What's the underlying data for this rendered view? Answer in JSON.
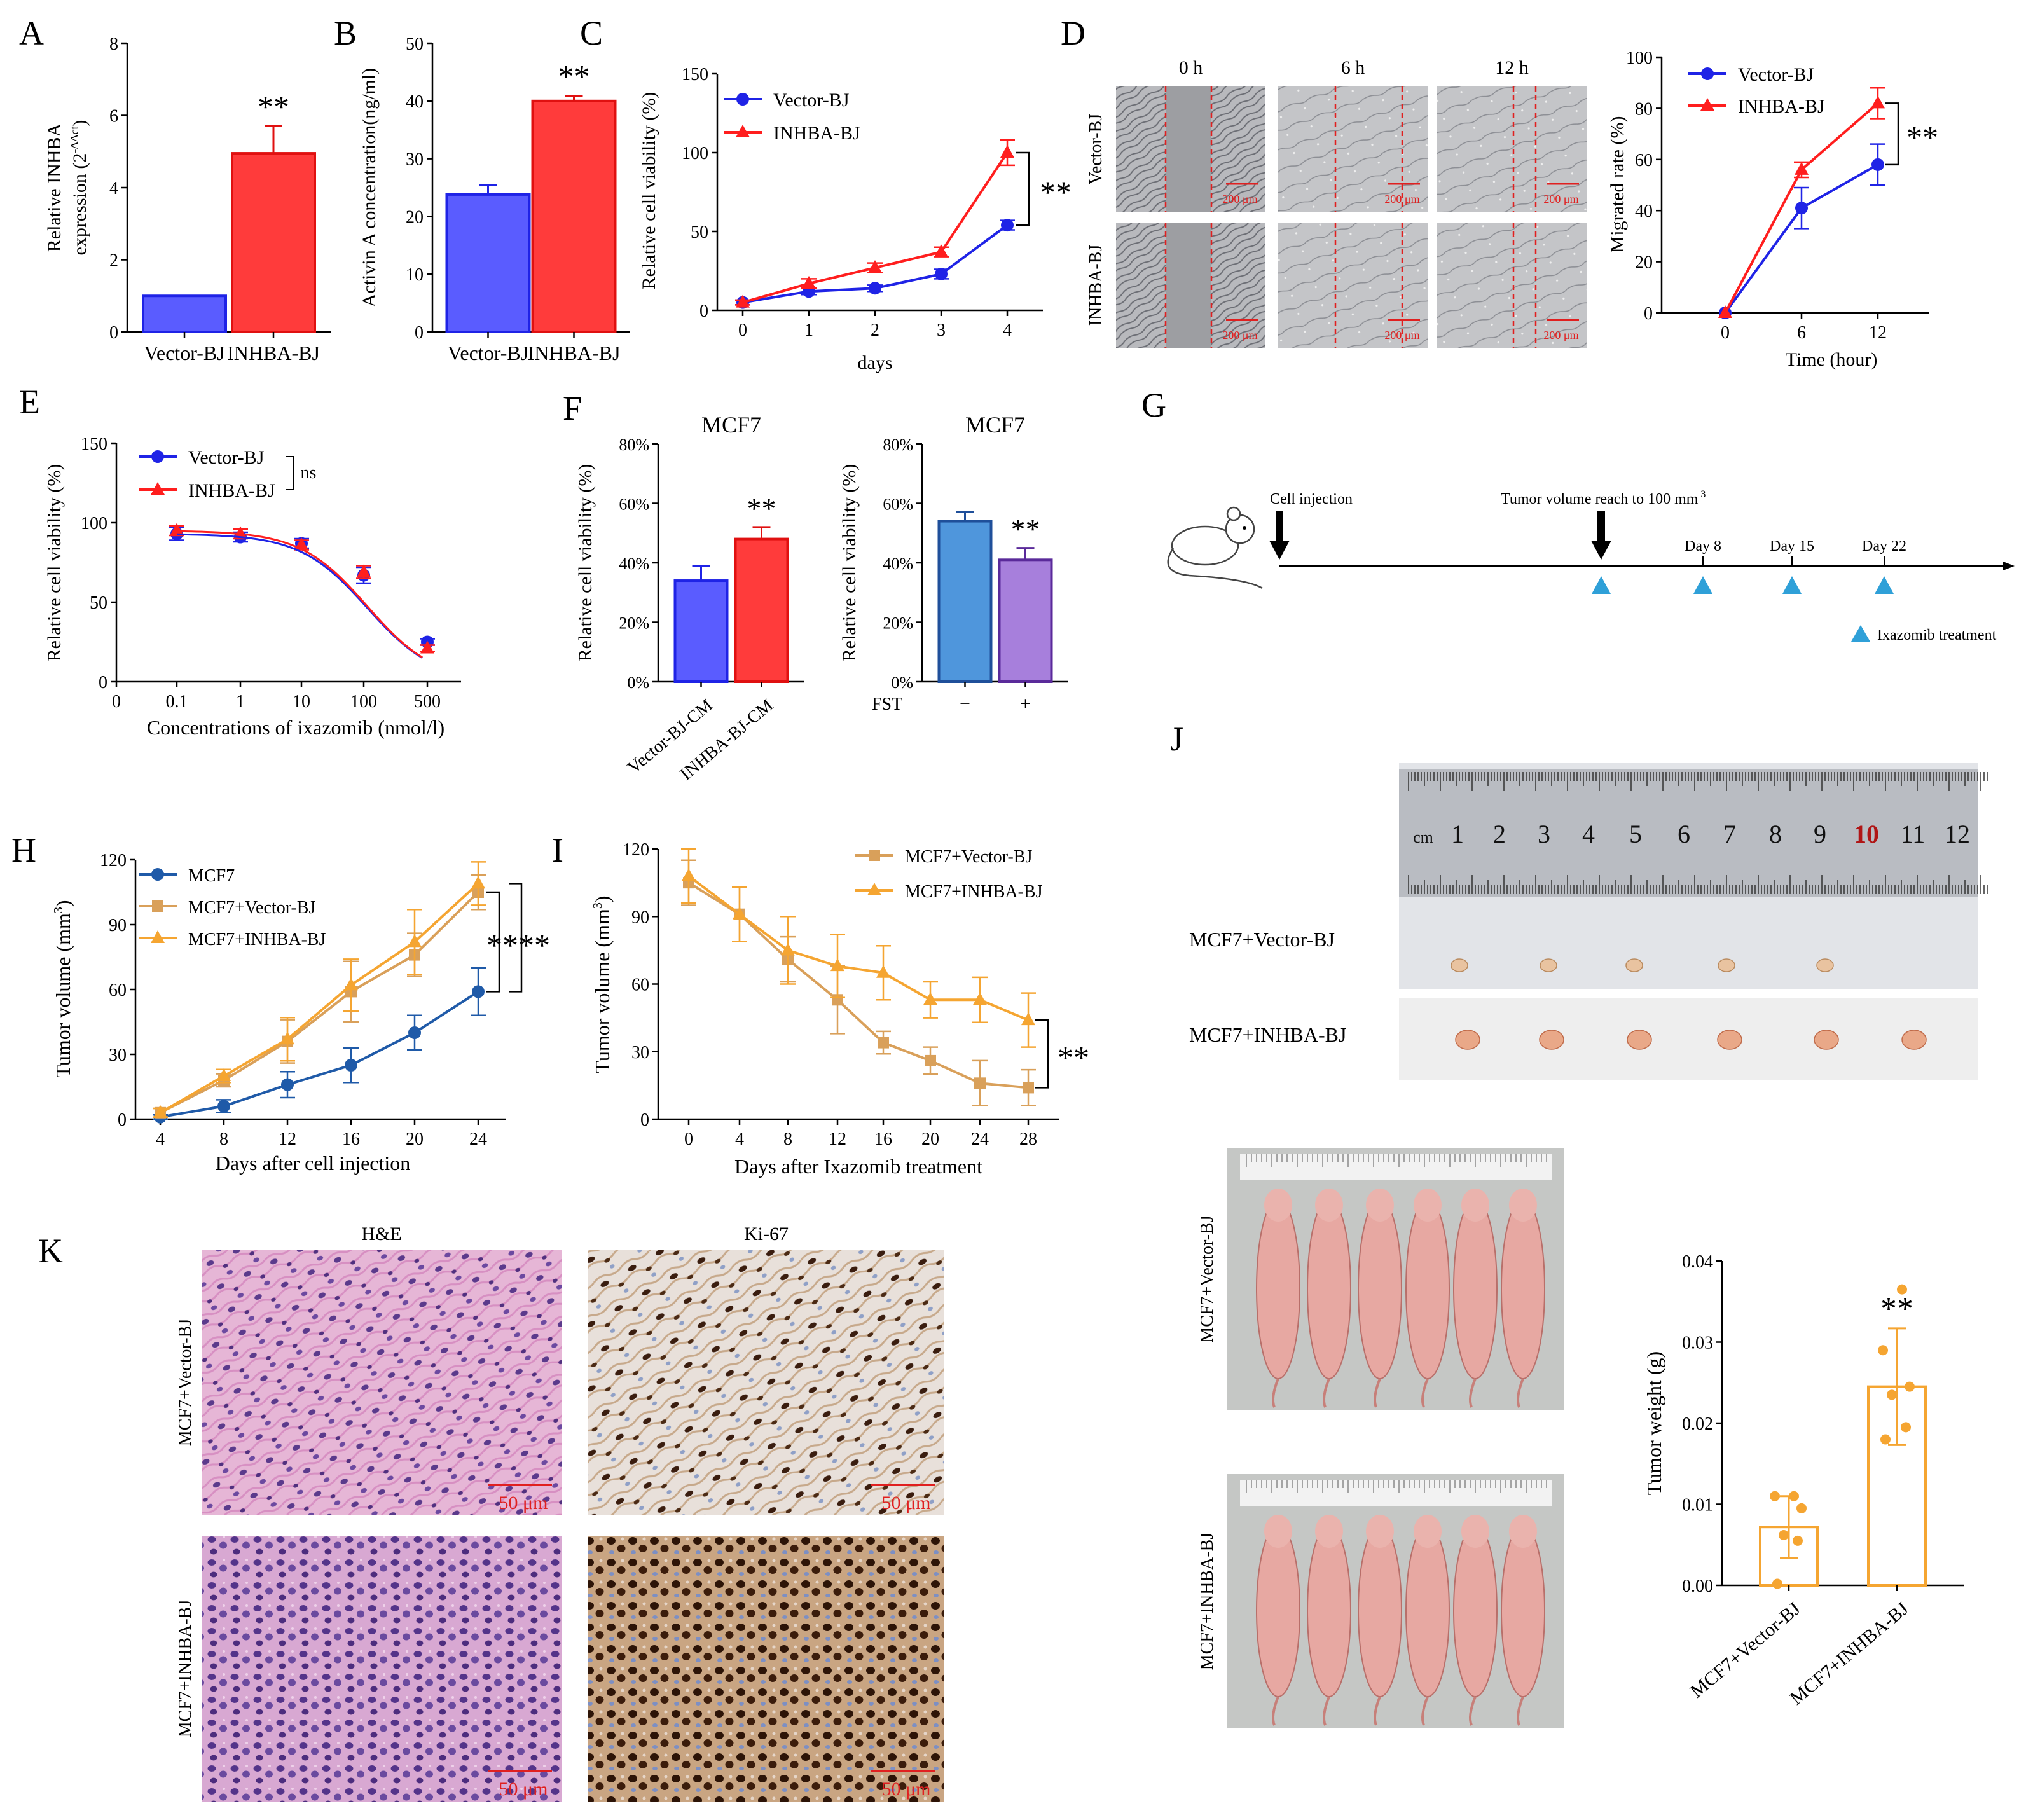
{
  "figure": {
    "panel_letters": [
      "A",
      "B",
      "C",
      "D",
      "E",
      "F",
      "G",
      "H",
      "I",
      "J",
      "K"
    ],
    "colors": {
      "blue": "#1f23e6",
      "red": "#ff1e1e",
      "orange": "#f5a531",
      "tan": "#d9a05a",
      "barBlue": "#5a5cff",
      "barRed": "#ff3b3b",
      "steel": "#4f96dc",
      "lavender": "#a77fdc",
      "tumor": "#e9c3a0",
      "mouse": "#e7a8a2"
    }
  },
  "chart_data": [
    {
      "id": "A",
      "type": "bar",
      "categories": [
        "Vector-BJ",
        "INHBA-BJ"
      ],
      "values": [
        1.0,
        4.95
      ],
      "errors": [
        0,
        0.75
      ],
      "ylabel_main": "Relative INHBA",
      "ylabel_sub": "expression (2",
      "ylabel_sup": "-ΔΔct",
      "ylabel_close": ")",
      "ylim": [
        0,
        8
      ],
      "yticks": [
        "0",
        "2",
        "4",
        "6",
        "8"
      ],
      "sig": "**"
    },
    {
      "id": "B",
      "type": "bar",
      "categories": [
        "Vector-BJ",
        "INHBA-BJ"
      ],
      "values": [
        23.8,
        40.0
      ],
      "errors": [
        1.7,
        0.9
      ],
      "ylabel": "Activin A concentration(ng/ml)",
      "ylim": [
        0,
        50
      ],
      "yticks": [
        "0",
        "10",
        "20",
        "30",
        "40",
        "50"
      ],
      "sig": "**"
    },
    {
      "id": "C",
      "type": "line",
      "x": [
        0,
        1,
        2,
        3,
        4
      ],
      "xticks": [
        "0",
        "1",
        "2",
        "3",
        "4"
      ],
      "xlabel": "days",
      "ylabel": "Relative cell viability (%)",
      "ylim": [
        0,
        150
      ],
      "yticks": [
        "0",
        "50",
        "100",
        "150"
      ],
      "series": [
        {
          "name": "Vector-BJ",
          "values": [
            5,
            12,
            14,
            23,
            54
          ],
          "errors": [
            1.5,
            2,
            2,
            3,
            3
          ]
        },
        {
          "name": "INHBA-BJ",
          "values": [
            5,
            17,
            27,
            37,
            100
          ],
          "errors": [
            1.5,
            3,
            3,
            3,
            8
          ]
        }
      ],
      "sig": "**"
    },
    {
      "id": "D_images",
      "type": "image_grid",
      "columns": [
        "0 h",
        "6 h",
        "12 h"
      ],
      "rows": [
        "Vector-BJ",
        "INHBA-BJ"
      ],
      "scale": "200 μm"
    },
    {
      "id": "D",
      "type": "line",
      "x": [
        0,
        6,
        12
      ],
      "xticks": [
        "0",
        "6",
        "12"
      ],
      "xlabel": "Time (hour)",
      "ylabel": "Migrated rate (%)",
      "ylim": [
        0,
        100
      ],
      "yticks": [
        "0",
        "20",
        "40",
        "60",
        "80",
        "100"
      ],
      "series": [
        {
          "name": "Vector-BJ",
          "values": [
            0,
            41,
            58
          ],
          "errors": [
            0,
            8,
            8
          ]
        },
        {
          "name": "INHBA-BJ",
          "values": [
            0,
            56,
            82
          ],
          "errors": [
            0,
            3,
            6
          ]
        }
      ],
      "sig": "**"
    },
    {
      "id": "E",
      "type": "line",
      "x": [
        "0.1",
        "1",
        "10",
        "100",
        "500"
      ],
      "xticks": [
        "0",
        "0.1",
        "1",
        "10",
        "100",
        "500"
      ],
      "xlabel": "Concentrations of ixazomib (nmol/l)",
      "ylabel": "Relative cell viability (%)",
      "ylim": [
        0,
        150
      ],
      "yticks": [
        "0",
        "50",
        "100",
        "150"
      ],
      "series": [
        {
          "name": "Vector-BJ",
          "values": [
            93,
            91,
            87,
            67,
            25
          ],
          "errors": [
            4,
            3,
            3,
            5,
            2
          ]
        },
        {
          "name": "INHBA-BJ",
          "values": [
            95,
            93,
            86,
            69,
            21
          ],
          "errors": [
            3,
            3,
            3,
            4,
            2
          ]
        }
      ],
      "sig": "ns"
    },
    {
      "id": "F1",
      "type": "bar",
      "title": "MCF7",
      "categories": [
        "Vector-BJ-CM",
        "INHBA-BJ-CM"
      ],
      "values": [
        34,
        48
      ],
      "errors": [
        5,
        4
      ],
      "ylabel": "Relative cell viability (%)",
      "ylim": [
        0,
        80
      ],
      "yticks": [
        "0%",
        "20%",
        "40%",
        "60%",
        "80%"
      ],
      "sig": "**"
    },
    {
      "id": "F2",
      "type": "bar",
      "title": "MCF7",
      "categories": [
        "−",
        "+"
      ],
      "category_axis_label": "FST",
      "values": [
        54,
        41
      ],
      "errors": [
        3,
        4
      ],
      "ylabel": "Relative cell viability (%)",
      "ylim": [
        0,
        80
      ],
      "yticks": [
        "0%",
        "20%",
        "40%",
        "60%",
        "80%"
      ],
      "sig": "**"
    },
    {
      "id": "G",
      "type": "timeline",
      "events": [
        {
          "label": "Cell injection"
        },
        {
          "label": "Tumor  volume  reach  to 100 mm",
          "sup": "3"
        }
      ],
      "days": [
        "Day 8",
        "Day 15",
        "Day 22"
      ],
      "legend": "Ixazomib treatment"
    },
    {
      "id": "H",
      "type": "line",
      "x": [
        4,
        8,
        12,
        16,
        20,
        24
      ],
      "xticks": [
        "4",
        "8",
        "12",
        "16",
        "20",
        "24"
      ],
      "xlabel": "Days after cell injection",
      "ylabel": "Tumor volume (mm",
      "ylabel_sup": "3",
      "ylabel_close": ")",
      "ylim": [
        0,
        120
      ],
      "yticks": [
        "0",
        "30",
        "60",
        "90",
        "120"
      ],
      "series": [
        {
          "name": "MCF7",
          "values": [
            1,
            6,
            16,
            25,
            40,
            59
          ],
          "errors": [
            1,
            3,
            6,
            8,
            8,
            11
          ]
        },
        {
          "name": "MCF7+Vector-BJ",
          "values": [
            3,
            18,
            36,
            59,
            76,
            105
          ],
          "errors": [
            2,
            3,
            10,
            14,
            10,
            8
          ]
        },
        {
          "name": "MCF7+INHBA-BJ",
          "values": [
            3,
            20,
            37,
            62,
            82,
            109
          ],
          "errors": [
            2,
            3,
            10,
            12,
            15,
            10
          ]
        }
      ],
      "sig": "****"
    },
    {
      "id": "I",
      "type": "line",
      "x": [
        0,
        4,
        8,
        12,
        16,
        20,
        24,
        28
      ],
      "xticks": [
        "0",
        "4",
        "8",
        "12",
        "16",
        "20",
        "24",
        "28"
      ],
      "xlabel": "Days after Ixazomib treatment",
      "ylabel": "Tumor volume (mm",
      "ylabel_sup": "3",
      "ylabel_close": ")",
      "ylim": [
        0,
        120
      ],
      "yticks": [
        "0",
        "30",
        "60",
        "90",
        "120"
      ],
      "series": [
        {
          "name": "MCF7+Vector-BJ",
          "values": [
            105,
            91,
            71,
            53,
            34,
            26,
            16,
            14
          ],
          "errors": [
            10,
            12,
            10,
            15,
            5,
            6,
            10,
            8
          ]
        },
        {
          "name": "MCF7+INHBA-BJ",
          "values": [
            108,
            91,
            75,
            68,
            65,
            53,
            53,
            44
          ],
          "errors": [
            12,
            12,
            15,
            14,
            12,
            8,
            10,
            12
          ]
        }
      ],
      "sig": "**"
    },
    {
      "id": "J_photos",
      "type": "image",
      "labels": [
        "MCF7+Vector-BJ",
        "MCF7+INHBA-BJ"
      ],
      "ruler": [
        "cm",
        "1",
        "2",
        "3",
        "4",
        "5",
        "6",
        "7",
        "8",
        "9",
        "10",
        "11",
        "12"
      ],
      "mice_rows": [
        "MCF7+Vector-BJ",
        "MCF7+INHBA-BJ"
      ]
    },
    {
      "id": "J",
      "type": "bar",
      "categories": [
        "MCF7+Vector-BJ",
        "MCF7+INHBA-BJ"
      ],
      "values": [
        0.0072,
        0.0245
      ],
      "errors": [
        0.0038,
        0.0072
      ],
      "ylabel": "Tumor weight (g)",
      "ylim": [
        0,
        0.04
      ],
      "yticks": [
        "0.00",
        "0.01",
        "0.02",
        "0.03",
        "0.04"
      ],
      "points": [
        [
          0.0002,
          0.0055,
          0.0062,
          0.0095,
          0.011,
          0.011
        ],
        [
          0.018,
          0.0195,
          0.0235,
          0.0245,
          0.029,
          0.0365
        ]
      ],
      "sig": "**"
    },
    {
      "id": "K",
      "type": "image_grid",
      "columns": [
        "H&E",
        "Ki-67"
      ],
      "rows": [
        "MCF7+Vector-BJ",
        "MCF7+INHBA-BJ"
      ],
      "scale": "50 μm"
    }
  ]
}
